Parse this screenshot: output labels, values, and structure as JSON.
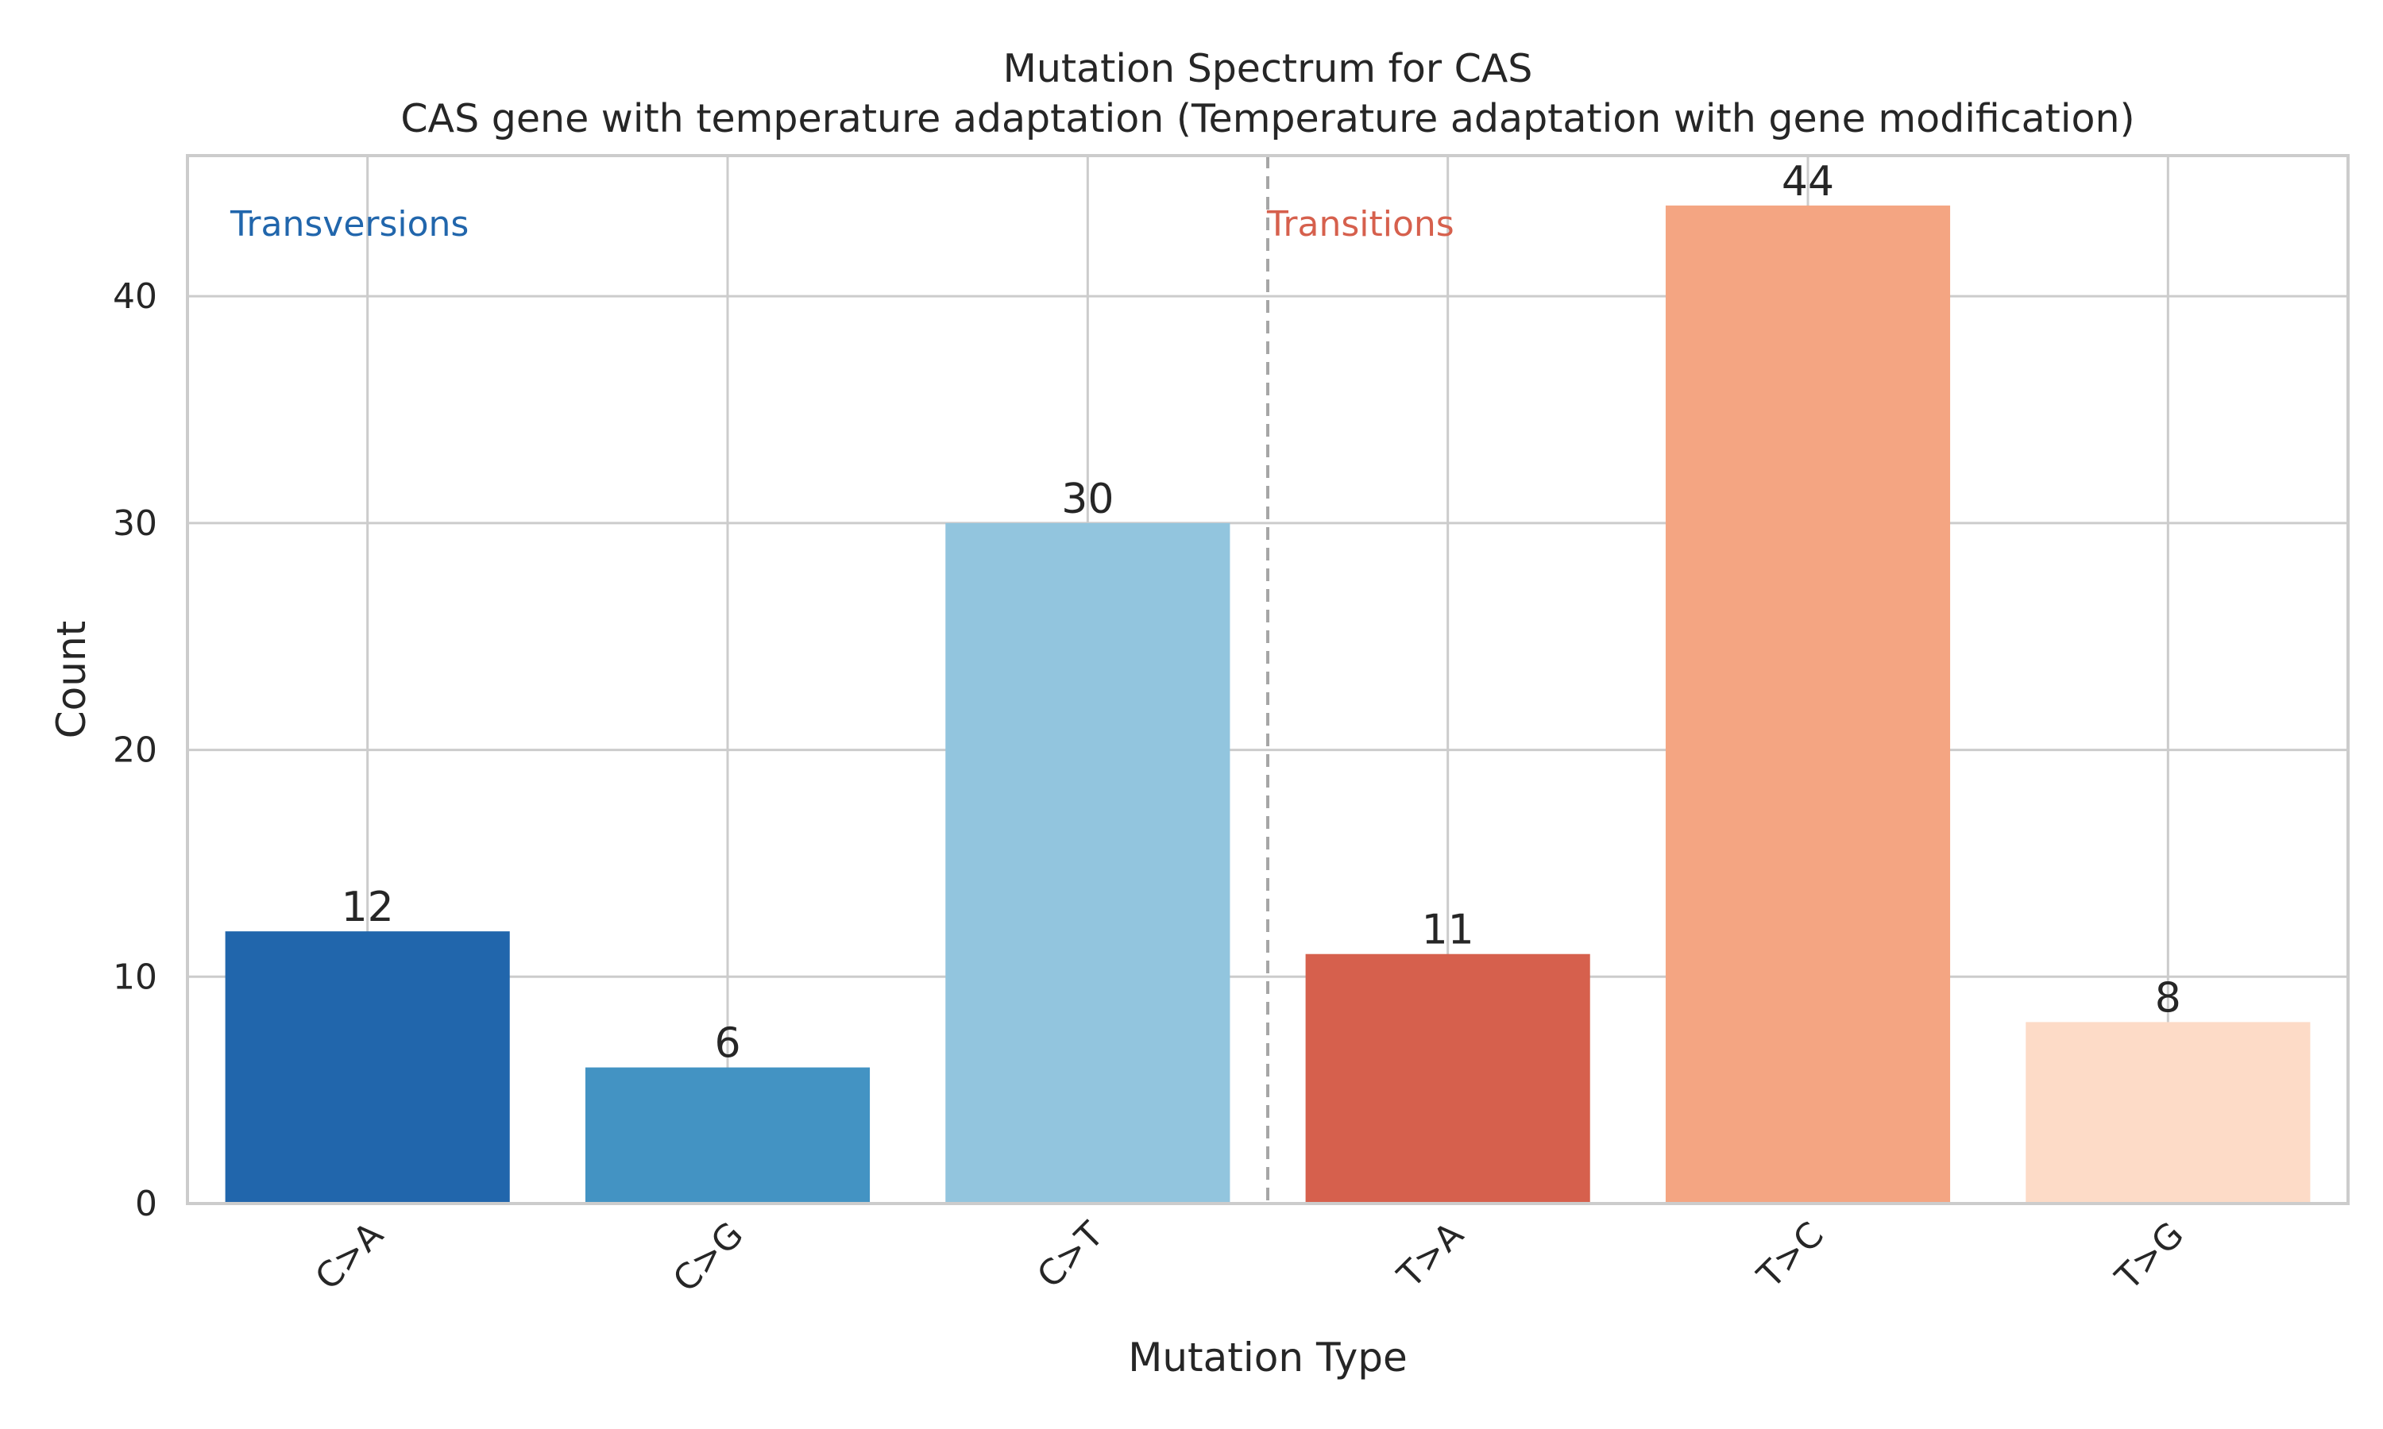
{
  "chart_data": {
    "type": "bar",
    "title": "Mutation Spectrum for CAS",
    "subtitle": "CAS gene with temperature adaptation (Temperature adaptation with gene modification)",
    "xlabel": "Mutation Type",
    "ylabel": "Count",
    "categories": [
      "C>A",
      "C>G",
      "C>T",
      "T>A",
      "T>C",
      "T>G"
    ],
    "values": [
      12,
      6,
      30,
      11,
      44,
      8
    ],
    "colors": [
      "#2166ac",
      "#4393c3",
      "#92c5de",
      "#d6604d",
      "#f4a582",
      "#fddbc7"
    ],
    "ylim": [
      0,
      46.2
    ],
    "yticks": [
      0,
      10,
      20,
      30,
      40
    ],
    "grid": true,
    "groups": [
      {
        "label": "Transversions",
        "color": "#2166ac"
      },
      {
        "label": "Transitions",
        "color": "#d6604d"
      }
    ],
    "separator_after_index": 2
  }
}
